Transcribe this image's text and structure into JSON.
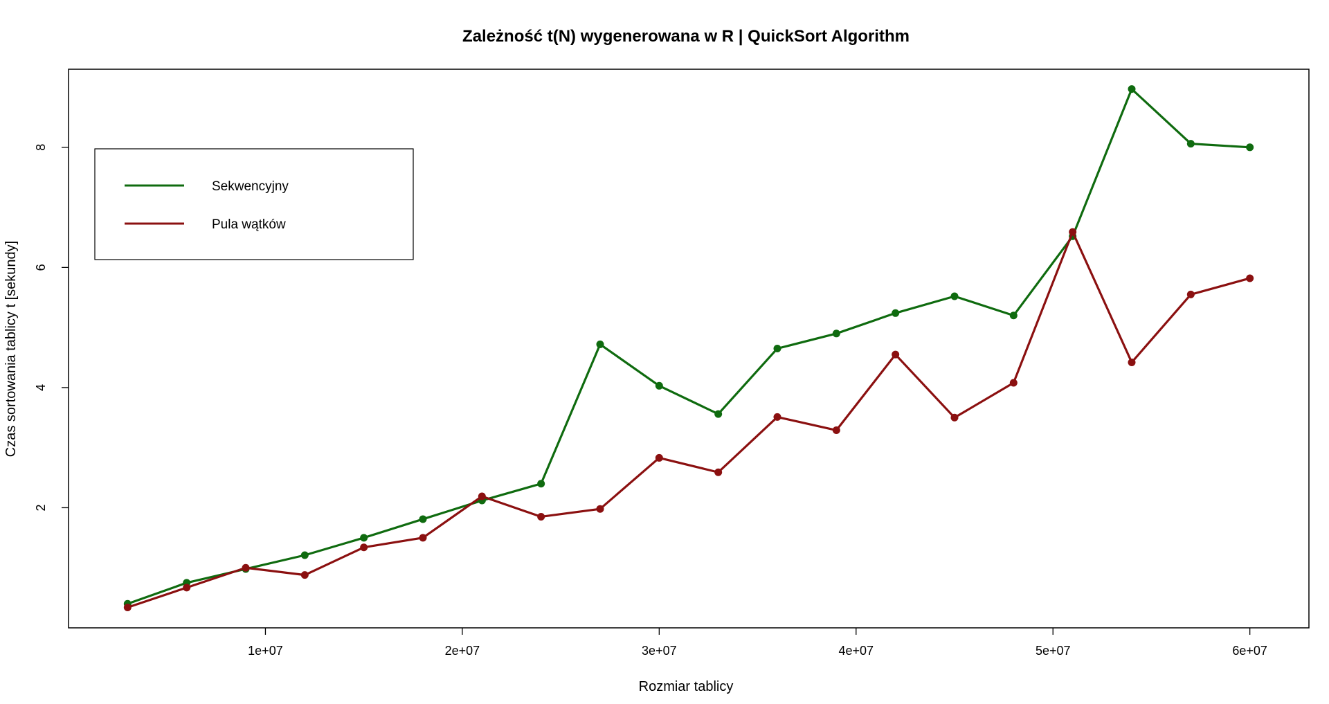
{
  "chart_data": {
    "type": "line",
    "title": "Zależność t(N) wygenerowana w R | QuickSort Algorithm",
    "xlabel": "Rozmiar tablicy",
    "ylabel": "Czas sortowania tablicy t [sekundy]",
    "xlim": [
      0,
      63000000
    ],
    "ylim": [
      0,
      9.3
    ],
    "x_ticks": [
      {
        "value": 10000000,
        "label": "1e+07"
      },
      {
        "value": 20000000,
        "label": "2e+07"
      },
      {
        "value": 30000000,
        "label": "3e+07"
      },
      {
        "value": 40000000,
        "label": "4e+07"
      },
      {
        "value": 50000000,
        "label": "5e+07"
      },
      {
        "value": 60000000,
        "label": "6e+07"
      }
    ],
    "y_ticks": [
      {
        "value": 2,
        "label": "2"
      },
      {
        "value": 4,
        "label": "4"
      },
      {
        "value": 6,
        "label": "6"
      },
      {
        "value": 8,
        "label": "8"
      }
    ],
    "grid": false,
    "legend_position": "top-left",
    "x": [
      3000000,
      6000000,
      9000000,
      12000000,
      15000000,
      18000000,
      21000000,
      24000000,
      27000000,
      30000000,
      33000000,
      36000000,
      39000000,
      42000000,
      45000000,
      48000000,
      51000000,
      54000000,
      57000000,
      60000000
    ],
    "series": [
      {
        "name": "Sekwencyjny",
        "color": "#0f6b0f",
        "values": [
          0.4,
          0.75,
          0.98,
          1.21,
          1.5,
          1.81,
          2.12,
          2.4,
          4.72,
          4.03,
          3.56,
          4.65,
          4.9,
          5.24,
          5.52,
          5.2,
          6.52,
          8.97,
          8.06,
          8.0
        ]
      },
      {
        "name": "Pula wątków",
        "color": "#8b1010",
        "values": [
          0.34,
          0.67,
          1.0,
          0.88,
          1.34,
          1.5,
          2.19,
          1.85,
          1.98,
          2.83,
          2.59,
          3.51,
          3.29,
          4.55,
          3.5,
          4.08,
          6.59,
          4.42,
          5.55,
          5.82
        ]
      }
    ]
  }
}
